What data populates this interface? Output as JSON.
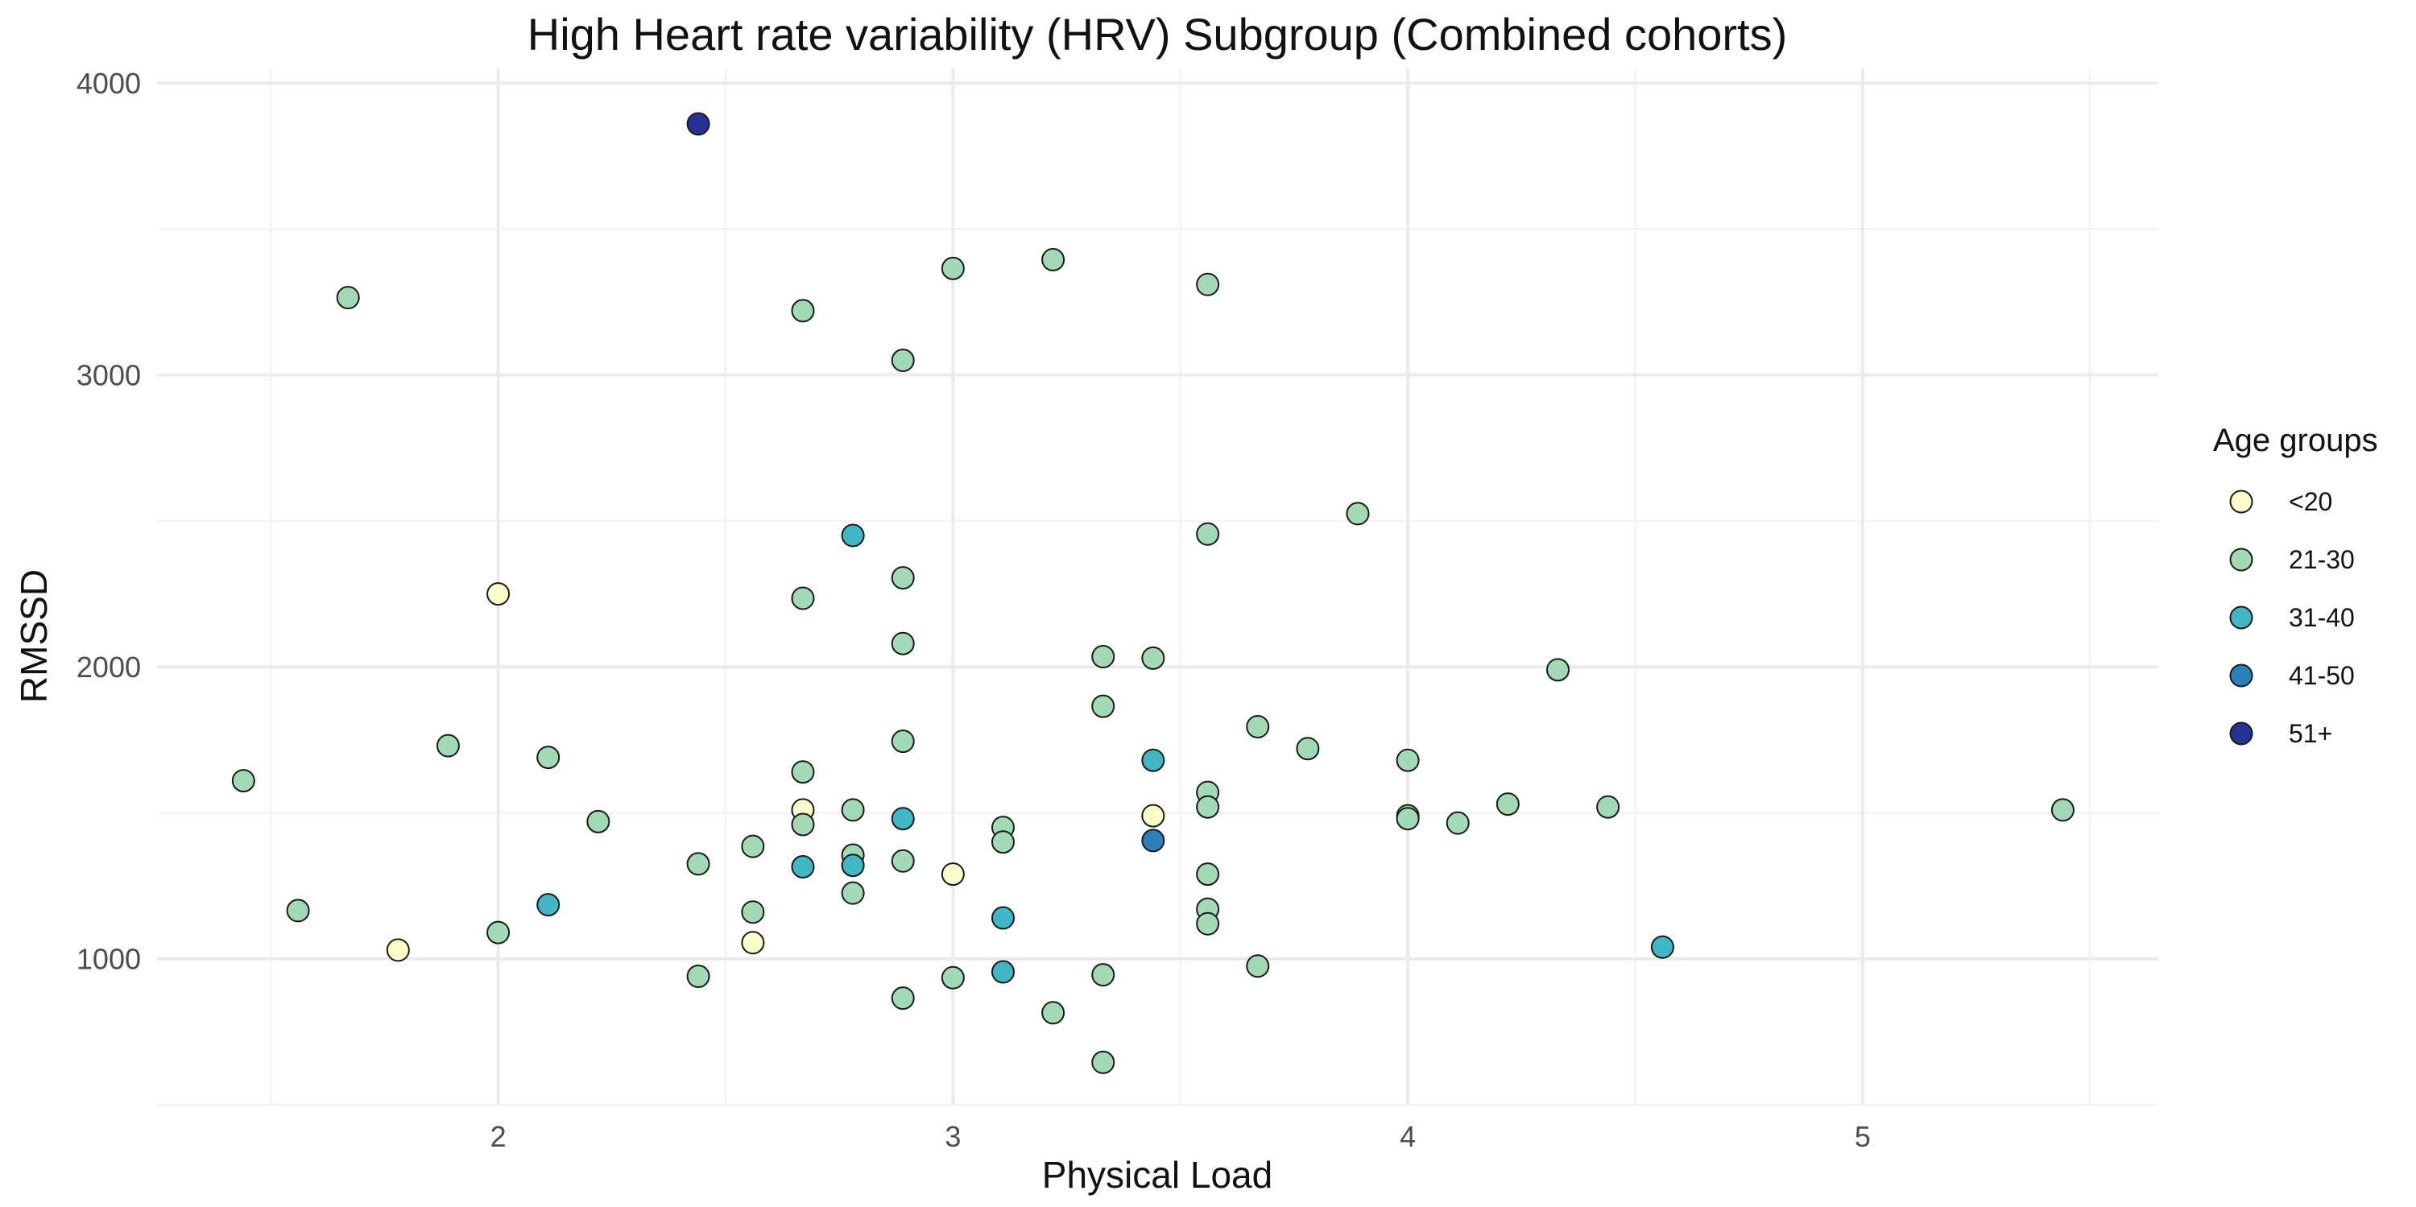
{
  "chart_data": {
    "type": "scatter",
    "title": "High Heart rate variability (HRV) Subgroup (Combined cohorts)",
    "xlabel": "Physical Load",
    "ylabel": "RMSSD",
    "xlim": [
      1.25,
      5.65
    ],
    "ylim": [
      500,
      4050
    ],
    "x_ticks": [
      2,
      3,
      4,
      5
    ],
    "y_ticks": [
      1000,
      2000,
      3000,
      4000
    ],
    "x_tick_labels": [
      "2",
      "3",
      "4",
      "5"
    ],
    "y_tick_labels": [
      "1000",
      "2000",
      "3000",
      "4000"
    ],
    "grid": true,
    "legend": {
      "title": "Age groups",
      "position": "right",
      "entries": [
        {
          "label": "<20",
          "color": "#ffffcc"
        },
        {
          "label": "21-30",
          "color": "#a1dab4"
        },
        {
          "label": "31-40",
          "color": "#41b6c4"
        },
        {
          "label": "41-50",
          "color": "#2c7fb8"
        },
        {
          "label": "51+",
          "color": "#253494"
        }
      ]
    },
    "series": [
      {
        "name": "<20",
        "color": "#ffffcc",
        "points": [
          [
            1.78,
            1030
          ],
          [
            2.0,
            2250
          ],
          [
            2.56,
            1055
          ],
          [
            2.67,
            1510
          ],
          [
            3.0,
            1290
          ],
          [
            3.44,
            1490
          ]
        ]
      },
      {
        "name": "21-30",
        "color": "#a1dab4",
        "points": [
          [
            1.44,
            1610
          ],
          [
            1.56,
            1165
          ],
          [
            1.67,
            3265
          ],
          [
            1.89,
            1730
          ],
          [
            2.0,
            1090
          ],
          [
            2.11,
            1690
          ],
          [
            2.22,
            1470
          ],
          [
            2.44,
            1325
          ],
          [
            2.44,
            940
          ],
          [
            2.56,
            1385
          ],
          [
            2.56,
            1160
          ],
          [
            2.67,
            3220
          ],
          [
            2.67,
            2235
          ],
          [
            2.67,
            1640
          ],
          [
            2.67,
            1460
          ],
          [
            2.78,
            1510
          ],
          [
            2.78,
            1355
          ],
          [
            2.78,
            1225
          ],
          [
            2.89,
            3050
          ],
          [
            2.89,
            2305
          ],
          [
            2.89,
            2080
          ],
          [
            2.89,
            1745
          ],
          [
            2.89,
            1335
          ],
          [
            2.89,
            865
          ],
          [
            3.0,
            3365
          ],
          [
            3.0,
            935
          ],
          [
            3.11,
            1450
          ],
          [
            3.11,
            1400
          ],
          [
            3.22,
            3395
          ],
          [
            3.22,
            815
          ],
          [
            3.33,
            2035
          ],
          [
            3.33,
            1865
          ],
          [
            3.33,
            945
          ],
          [
            3.33,
            645
          ],
          [
            3.44,
            2030
          ],
          [
            3.56,
            3310
          ],
          [
            3.56,
            2455
          ],
          [
            3.56,
            1570
          ],
          [
            3.56,
            1520
          ],
          [
            3.56,
            1290
          ],
          [
            3.56,
            1170
          ],
          [
            3.56,
            1120
          ],
          [
            3.67,
            1795
          ],
          [
            3.67,
            975
          ],
          [
            3.78,
            1720
          ],
          [
            3.89,
            2525
          ],
          [
            4.0,
            1680
          ],
          [
            4.0,
            1490
          ],
          [
            4.0,
            1480
          ],
          [
            4.11,
            1465
          ],
          [
            4.22,
            1530
          ],
          [
            4.33,
            1990
          ],
          [
            4.44,
            1520
          ],
          [
            5.44,
            1510
          ]
        ]
      },
      {
        "name": "31-40",
        "color": "#41b6c4",
        "points": [
          [
            2.11,
            1185
          ],
          [
            2.67,
            1315
          ],
          [
            2.78,
            2450
          ],
          [
            2.78,
            1320
          ],
          [
            2.89,
            1480
          ],
          [
            3.11,
            1140
          ],
          [
            3.11,
            955
          ],
          [
            3.44,
            1680
          ],
          [
            4.56,
            1040
          ]
        ]
      },
      {
        "name": "41-50",
        "color": "#2c7fb8",
        "points": [
          [
            3.44,
            1405
          ]
        ]
      },
      {
        "name": "51+",
        "color": "#253494",
        "points": [
          [
            2.44,
            3860
          ]
        ]
      }
    ]
  }
}
